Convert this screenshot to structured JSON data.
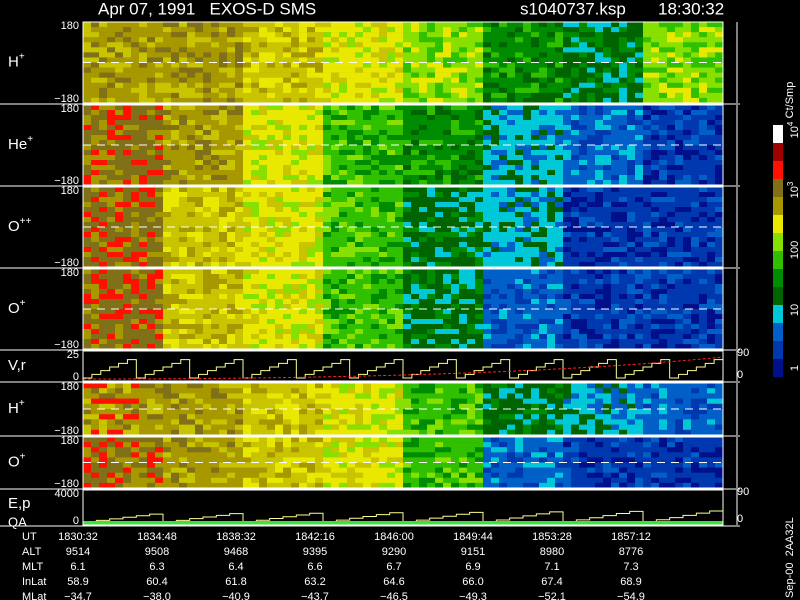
{
  "header": {
    "title": "Apr 07, 1991   EXOS-D SMS",
    "file": "s1040737.ksp",
    "time": "18:30:32"
  },
  "panels": [
    {
      "label": "H",
      "sup": "+",
      "ticks": [
        "180",
        "−180"
      ]
    },
    {
      "label": "He",
      "sup": "+",
      "ticks": [
        "180",
        "−180"
      ]
    },
    {
      "label": "O",
      "sup": "++",
      "ticks": [
        "180",
        "−180"
      ]
    },
    {
      "label": "O",
      "sup": "+",
      "ticks": [
        "180",
        "−180"
      ]
    },
    {
      "label": "V,r",
      "ticks": [
        "25",
        "0"
      ],
      "right_ticks": [
        "90",
        "0"
      ]
    },
    {
      "label": "H",
      "sup": "+",
      "ticks": [
        "180",
        "−180"
      ]
    },
    {
      "label": "O",
      "sup": "+",
      "ticks": [
        "180",
        "−180"
      ]
    },
    {
      "label": "E,p",
      "label2": "QA",
      "ticks": [
        "4000",
        "0"
      ],
      "right_ticks": [
        "90",
        "0"
      ]
    }
  ],
  "colorbar": {
    "unit": "Ct/Smp",
    "ticks": [
      {
        "text": "10",
        "sup": "4"
      },
      {
        "text": "10",
        "sup": "3"
      },
      {
        "text": "100"
      },
      {
        "text": "10"
      },
      {
        "text": "1"
      }
    ]
  },
  "table": {
    "rows": [
      {
        "label": "UT",
        "values": [
          "1830:32",
          "1834:48",
          "1838:32",
          "1842:16",
          "1846:00",
          "1849:44",
          "1853:28",
          "1857:12"
        ]
      },
      {
        "label": "ALT",
        "values": [
          "9514",
          "9508",
          "9468",
          "9395",
          "9290",
          "9151",
          "8980",
          "8776"
        ]
      },
      {
        "label": "MLT",
        "values": [
          "6.1",
          "6.3",
          "6.4",
          "6.6",
          "6.7",
          "6.9",
          "7.1",
          "7.3"
        ]
      },
      {
        "label": "InLat",
        "values": [
          "58.9",
          "60.4",
          "61.8",
          "63.2",
          "64.6",
          "66.0",
          "67.4",
          "68.9"
        ]
      },
      {
        "label": "MLat",
        "values": [
          "−34.7",
          "−38.0",
          "−40.9",
          "−43.7",
          "−46.5",
          "−49.3",
          "−52.1",
          "−54.9"
        ]
      }
    ]
  },
  "footer": "Sep-00  2AA32L"
}
